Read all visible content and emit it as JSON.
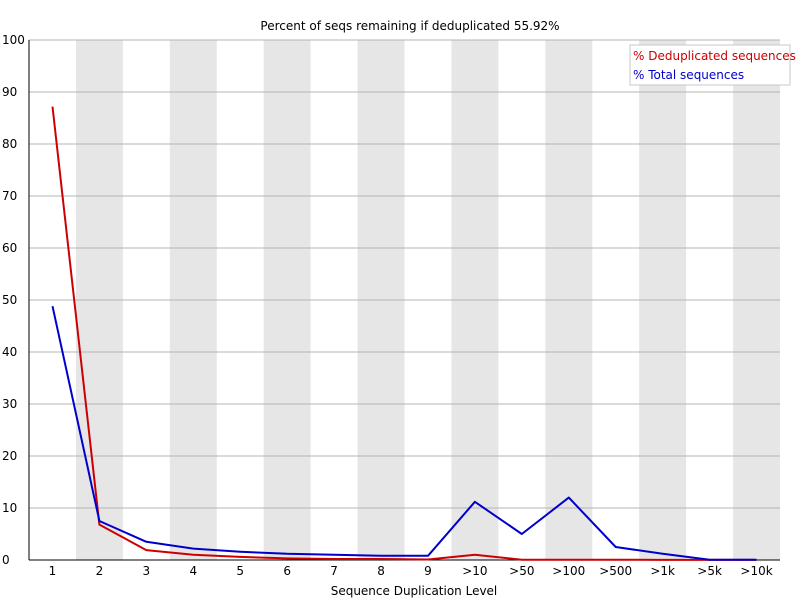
{
  "chart_data": {
    "type": "line",
    "title": "Percent of seqs remaining if deduplicated 55.92%",
    "xlabel": "Sequence Duplication Level",
    "ylabel": "",
    "categories": [
      "1",
      "2",
      "3",
      "4",
      "5",
      "6",
      "7",
      "8",
      "9",
      ">10",
      ">50",
      ">100",
      ">500",
      ">1k",
      ">5k",
      ">10k"
    ],
    "ylim": [
      0,
      100
    ],
    "yticks": [
      0,
      10,
      20,
      30,
      40,
      50,
      60,
      70,
      80,
      90,
      100
    ],
    "series": [
      {
        "name": "% Deduplicated sequences",
        "color": "#cc0000",
        "values": [
          87.2,
          6.8,
          1.9,
          1.0,
          0.6,
          0.3,
          0.2,
          0.2,
          0.1,
          1.0,
          0.05,
          0.05,
          0.05,
          0.02,
          0.01,
          0.01
        ]
      },
      {
        "name": "% Total sequences",
        "color": "#0000cc",
        "values": [
          48.8,
          7.5,
          3.5,
          2.2,
          1.6,
          1.2,
          1.0,
          0.8,
          0.8,
          11.2,
          5.0,
          12.0,
          2.5,
          1.2,
          0.05,
          0.05
        ]
      }
    ],
    "grid": true,
    "legend_position": "top-right"
  }
}
